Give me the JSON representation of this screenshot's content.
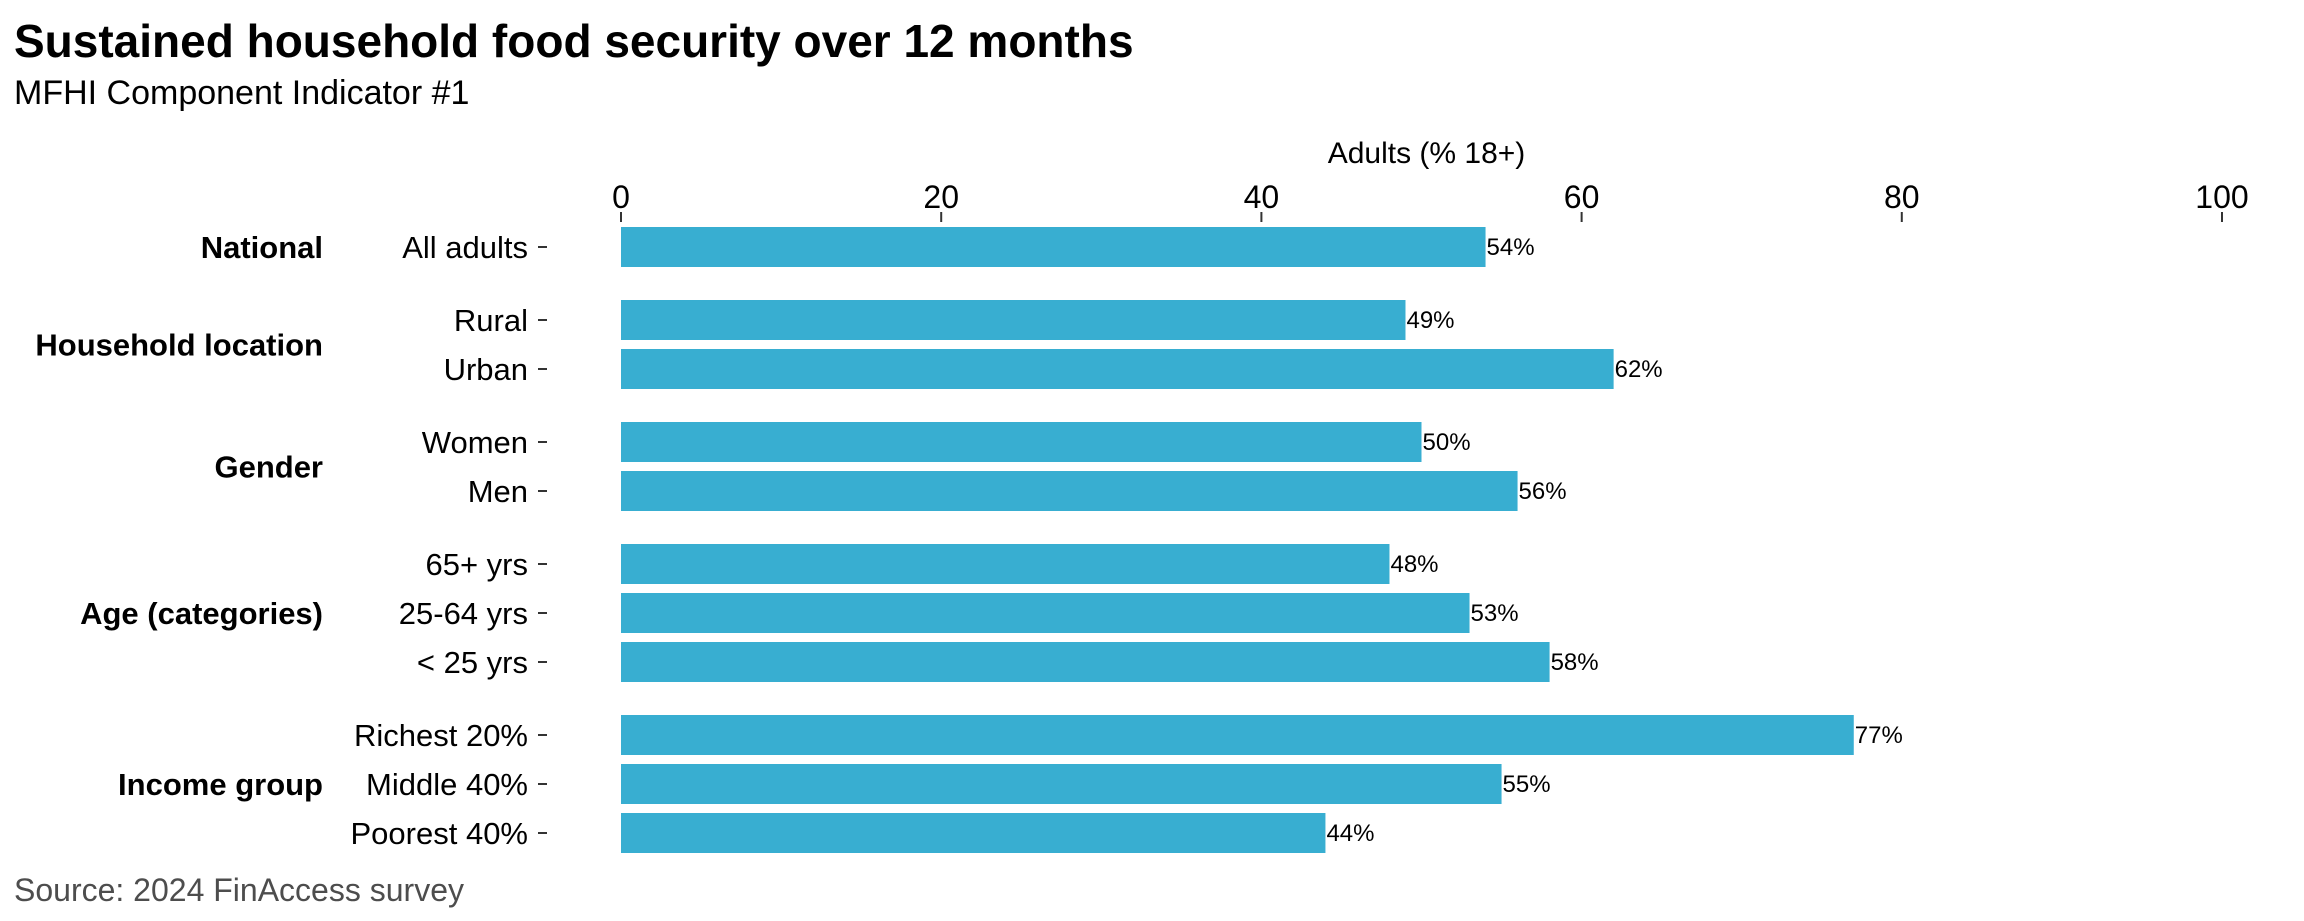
{
  "header": {
    "title": "Sustained household food security over 12 months",
    "subtitle": "MFHI Component Indicator #1"
  },
  "footer": {
    "source": "Source: 2024 FinAccess survey"
  },
  "colors": {
    "bar": "#38AED1",
    "text": "#000000",
    "source_text": "#4d4d4d"
  },
  "chart_data": {
    "type": "bar",
    "orientation": "horizontal",
    "xlabel": "Adults (% 18+)",
    "xlabel_position": "top",
    "xlim": [
      0,
      100
    ],
    "xticks": [
      0,
      20,
      40,
      60,
      80,
      100
    ],
    "grid": false,
    "legend": "none",
    "groups": [
      {
        "name": "National",
        "categories": [
          {
            "label": "All adults",
            "value": 54,
            "value_label": "54%"
          }
        ]
      },
      {
        "name": "Household location",
        "categories": [
          {
            "label": "Rural",
            "value": 49,
            "value_label": "49%"
          },
          {
            "label": "Urban",
            "value": 62,
            "value_label": "62%"
          }
        ]
      },
      {
        "name": "Gender",
        "categories": [
          {
            "label": "Women",
            "value": 50,
            "value_label": "50%"
          },
          {
            "label": "Men",
            "value": 56,
            "value_label": "56%"
          }
        ]
      },
      {
        "name": "Age (categories)",
        "categories": [
          {
            "label": "65+ yrs",
            "value": 48,
            "value_label": "48%"
          },
          {
            "label": "25-64 yrs",
            "value": 53,
            "value_label": "53%"
          },
          {
            "label": "< 25 yrs",
            "value": 58,
            "value_label": "58%"
          }
        ]
      },
      {
        "name": "Income group",
        "categories": [
          {
            "label": "Richest 20%",
            "value": 77,
            "value_label": "77%"
          },
          {
            "label": "Middle 40%",
            "value": 55,
            "value_label": "55%"
          },
          {
            "label": "Poorest 40%",
            "value": 44,
            "value_label": "44%"
          }
        ]
      }
    ]
  }
}
